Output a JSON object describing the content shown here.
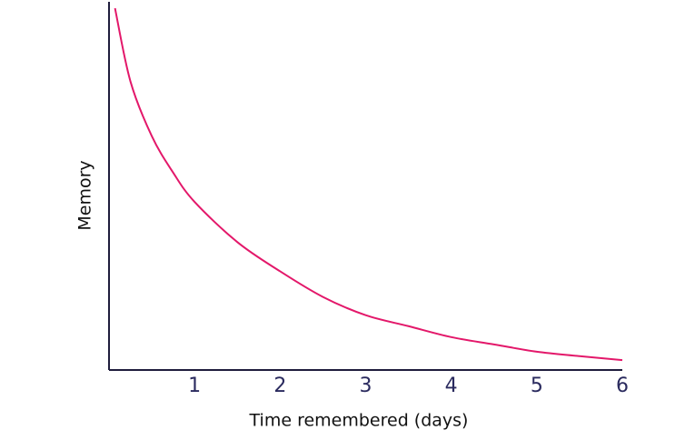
{
  "chart_data": {
    "type": "line",
    "x_label": "Time remembered (days)",
    "y_label": "Memory",
    "x": [
      0.07,
      0.25,
      0.5,
      0.75,
      1,
      1.5,
      2,
      2.5,
      3,
      3.5,
      4,
      4.5,
      5,
      5.5,
      6
    ],
    "values": [
      99,
      79,
      64,
      54,
      46,
      35,
      27,
      20,
      15,
      12,
      9,
      7,
      5,
      3.8,
      2.7
    ],
    "color": "#e3186a",
    "xlim": [
      0,
      6
    ],
    "xticks": [
      1,
      2,
      3,
      4,
      5,
      6
    ],
    "ylim": [
      0,
      100
    ],
    "axis_color": "#1f1d3d",
    "tick_color": "#2a2a5e"
  }
}
